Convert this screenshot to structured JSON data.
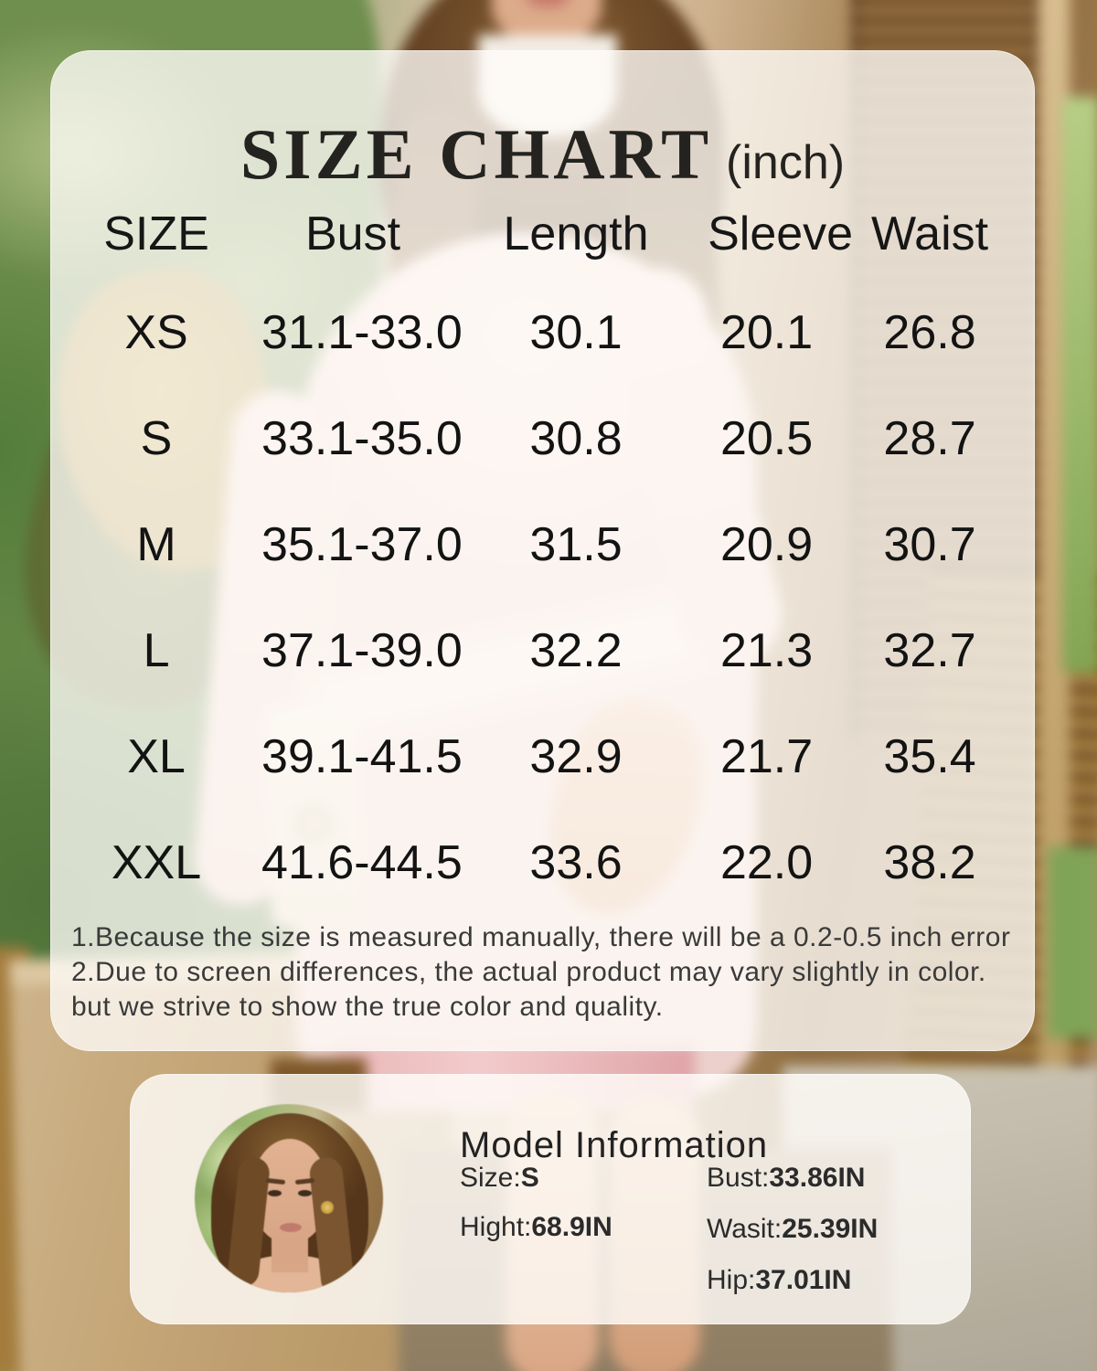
{
  "chart_data": {
    "type": "table",
    "title": "SIZE CHART",
    "unit_label": "(inch)",
    "columns": [
      "SIZE",
      "Bust",
      "Length",
      "Sleeve",
      "Waist"
    ],
    "rows": [
      [
        "XS",
        "31.1-33.0",
        "30.1",
        "20.1",
        "26.8"
      ],
      [
        "S",
        "33.1-35.0",
        "30.8",
        "20.5",
        "28.7"
      ],
      [
        "M",
        "35.1-37.0",
        "31.5",
        "20.9",
        "30.7"
      ],
      [
        "L",
        "37.1-39.0",
        "32.2",
        "21.3",
        "32.7"
      ],
      [
        "XL",
        "39.1-41.5",
        "32.9",
        "21.7",
        "35.4"
      ],
      [
        "XXL",
        "41.6-44.5",
        "33.6",
        "22.0",
        "38.2"
      ]
    ]
  },
  "notes": {
    "line1": "1.Because the size is measured manually, there will be a 0.2-0.5 inch error",
    "line2": "2.Due to screen differences, the actual product may vary slightly in color.",
    "line3": "but we strive to show the true color and quality."
  },
  "model_info": {
    "title": "Model Information",
    "size_label": "Size:",
    "size_value": "S",
    "height_label": "Hight:",
    "height_value": "68.9IN",
    "bust_label": "Bust:",
    "bust_value": "33.86IN",
    "waist_label": "Wasit:",
    "waist_value": "25.39IN",
    "hip_label": "Hip:",
    "hip_value": "37.01IN"
  },
  "colors": {
    "panel_overlay": "rgba(255,253,249,0.78)",
    "text_primary": "#161616",
    "text_notes": "#3a3a3a"
  }
}
